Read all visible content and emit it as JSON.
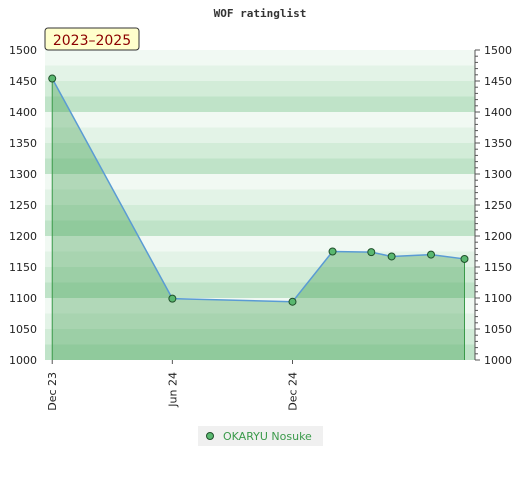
{
  "chart_data": {
    "type": "area",
    "title": "WOF ratinglist",
    "period_badge": "2023–2025",
    "ylim": [
      1000,
      1500
    ],
    "yticks": [
      1000,
      1050,
      1100,
      1150,
      1200,
      1250,
      1300,
      1350,
      1400,
      1450,
      1500
    ],
    "xlim": [
      "2023-11-20",
      "2025-09-05"
    ],
    "xticks": [
      {
        "label": "Dec 23",
        "date": "2023-12-01"
      },
      {
        "label": "Jun 24",
        "date": "2024-06-01"
      },
      {
        "label": "Dec 24",
        "date": "2024-12-01"
      }
    ],
    "grid": true,
    "legend_position": "bottom-center",
    "series": [
      {
        "name": "OKARYU Nosuke",
        "color": "#3a9a4a",
        "line_color": "#5a9bd4",
        "points": [
          {
            "date": "2023-12-01",
            "value": 1454
          },
          {
            "date": "2024-06-01",
            "value": 1099
          },
          {
            "date": "2024-12-01",
            "value": 1094
          },
          {
            "date": "2025-01-31",
            "value": 1175
          },
          {
            "date": "2025-03-31",
            "value": 1174
          },
          {
            "date": "2025-05-01",
            "value": 1167
          },
          {
            "date": "2025-06-30",
            "value": 1170
          },
          {
            "date": "2025-08-20",
            "value": 1163
          }
        ]
      }
    ]
  }
}
